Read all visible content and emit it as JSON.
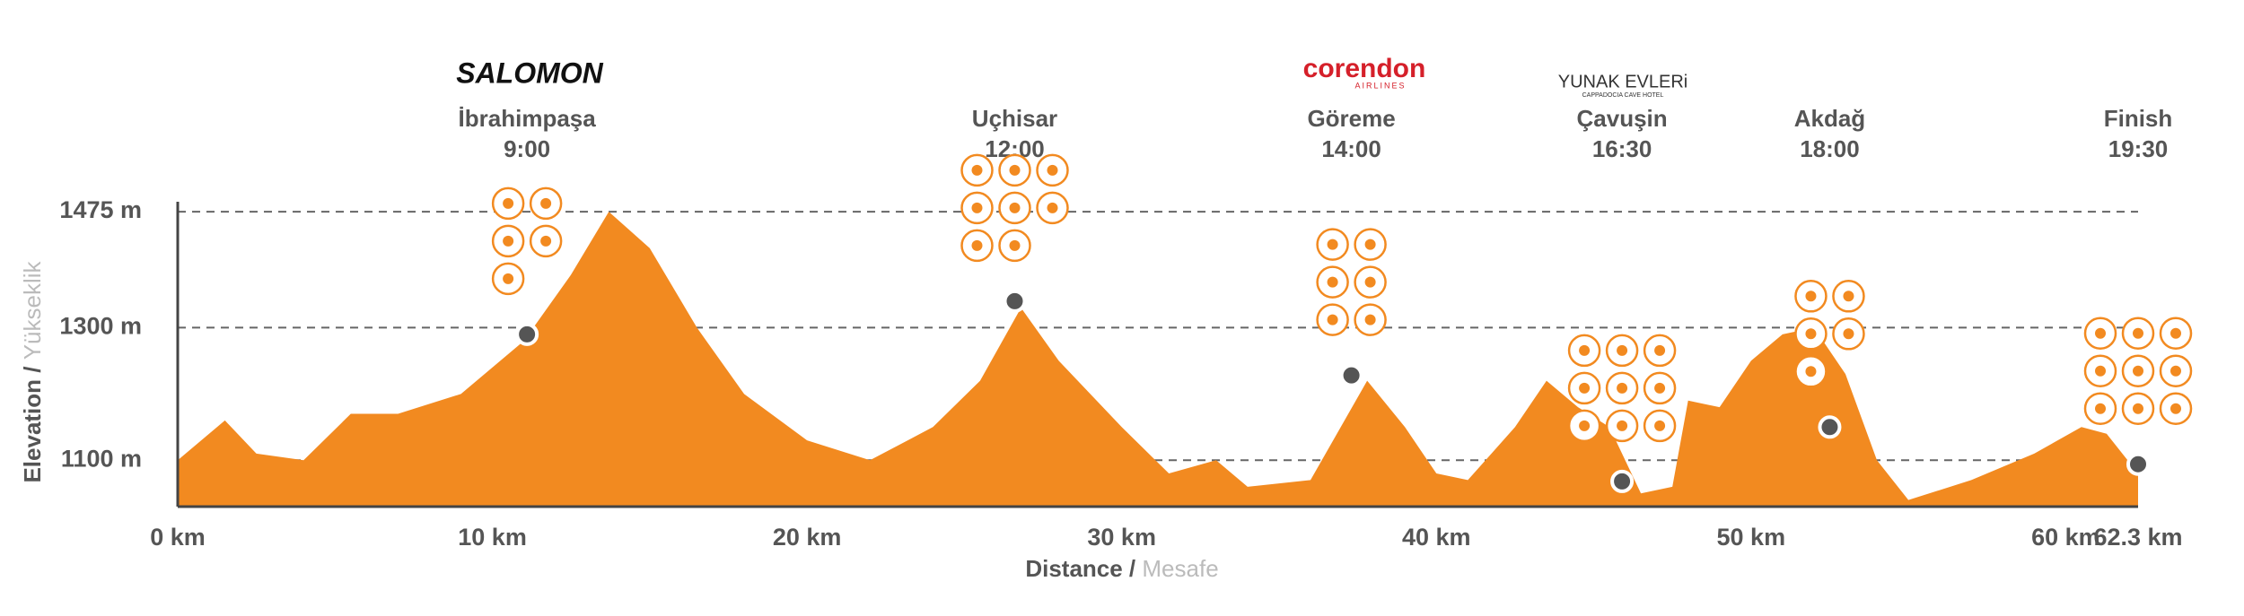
{
  "chart_data": {
    "type": "area",
    "y_label": "Elevation /",
    "y_label_secondary": "Yükseklik",
    "x_label": "Distance /",
    "x_label_secondary": "Mesafe",
    "color": "#f28a20",
    "x": [
      0,
      1.5,
      2.5,
      4,
      5.5,
      7,
      9,
      11,
      12.5,
      13.7,
      15,
      16.5,
      18,
      20,
      22,
      24,
      25.5,
      26.8,
      28,
      30,
      31.5,
      33,
      34,
      36,
      37.8,
      39,
      40,
      41,
      42.5,
      43.5,
      44.5,
      45.5,
      46.5,
      47.5,
      48,
      49,
      50,
      51,
      52,
      53,
      54,
      55,
      57,
      59,
      60.5,
      61.3,
      62.3
    ],
    "values": [
      1100,
      1160,
      1110,
      1100,
      1170,
      1170,
      1200,
      1280,
      1380,
      1475,
      1420,
      1300,
      1200,
      1130,
      1100,
      1150,
      1220,
      1330,
      1250,
      1150,
      1080,
      1100,
      1060,
      1070,
      1220,
      1150,
      1080,
      1070,
      1150,
      1220,
      1180,
      1150,
      1050,
      1060,
      1190,
      1180,
      1250,
      1290,
      1300,
      1230,
      1100,
      1040,
      1070,
      1110,
      1150,
      1140,
      1080
    ],
    "xlim": [
      0,
      62.3
    ],
    "ylim": [
      1030,
      1490
    ],
    "xticks": [
      {
        "value": 0,
        "label": "0 km"
      },
      {
        "value": 10,
        "label": "10 km"
      },
      {
        "value": 20,
        "label": "20 km"
      },
      {
        "value": 30,
        "label": "30 km"
      },
      {
        "value": 40,
        "label": "40 km"
      },
      {
        "value": 50,
        "label": "50 km"
      },
      {
        "value": 60,
        "label": "60 km"
      },
      {
        "value": 62.3,
        "label": "62.3 km"
      }
    ],
    "yticks": [
      {
        "value": 1100,
        "label": "1100 m"
      },
      {
        "value": 1300,
        "label": "1300 m"
      },
      {
        "value": 1475,
        "label": "1475 m"
      }
    ],
    "grid": true,
    "checkpoints": [
      {
        "name": "İbrahimpaşa",
        "time": "9:00",
        "x": 11.1,
        "value": 1290
      },
      {
        "name": "Uçhisar",
        "time": "12:00",
        "x": 26.6,
        "value": 1340
      },
      {
        "name": "Göreme",
        "time": "14:00",
        "x": 37.3,
        "value": 1228
      },
      {
        "name": "Çavuşin",
        "time": "16:30",
        "x": 45.9,
        "value": 1068
      },
      {
        "name": "Akdağ",
        "time": "18:00",
        "x": 52.5,
        "value": 1150
      },
      {
        "name": "Finish",
        "time": "19:30",
        "x": 62.3,
        "value": 1094
      }
    ],
    "sponsors": [
      {
        "name": "SALOMON"
      },
      {
        "name": "corendon",
        "sub": "AIRLINES"
      },
      {
        "name": "YUNAK EVLERi",
        "sub": "CAPPADOCIA CAVE HOTEL"
      }
    ]
  }
}
